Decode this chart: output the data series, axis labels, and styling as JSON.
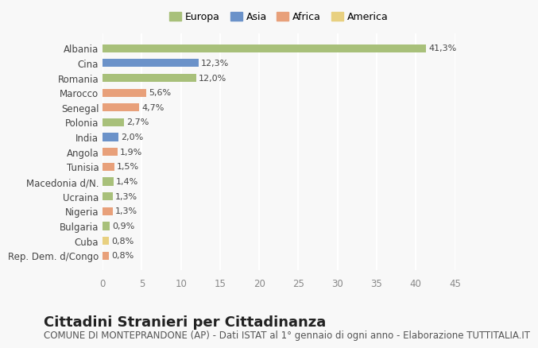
{
  "countries": [
    "Albania",
    "Cina",
    "Romania",
    "Marocco",
    "Senegal",
    "Polonia",
    "India",
    "Angola",
    "Tunisia",
    "Macedonia d/N.",
    "Ucraina",
    "Nigeria",
    "Bulgaria",
    "Cuba",
    "Rep. Dem. d/Congo"
  ],
  "values": [
    41.3,
    12.3,
    12.0,
    5.6,
    4.7,
    2.7,
    2.0,
    1.9,
    1.5,
    1.4,
    1.3,
    1.3,
    0.9,
    0.8,
    0.8
  ],
  "labels": [
    "41,3%",
    "12,3%",
    "12,0%",
    "5,6%",
    "4,7%",
    "2,7%",
    "2,0%",
    "1,9%",
    "1,5%",
    "1,4%",
    "1,3%",
    "1,3%",
    "0,9%",
    "0,8%",
    "0,8%"
  ],
  "continents": [
    "Europa",
    "Asia",
    "Europa",
    "Africa",
    "Africa",
    "Europa",
    "Asia",
    "Africa",
    "Africa",
    "Europa",
    "Europa",
    "Africa",
    "Europa",
    "America",
    "Africa"
  ],
  "continent_colors": {
    "Europa": "#a8c07a",
    "Asia": "#6b92c9",
    "Africa": "#e8a07a",
    "America": "#e8d080"
  },
  "legend_order": [
    "Europa",
    "Asia",
    "Africa",
    "America"
  ],
  "xlim": [
    0,
    45
  ],
  "xticks": [
    0,
    5,
    10,
    15,
    20,
    25,
    30,
    35,
    40,
    45
  ],
  "background_color": "#f8f8f8",
  "grid_color": "#ffffff",
  "title": "Cittadini Stranieri per Cittadinanza",
  "subtitle": "COMUNE DI MONTEPRANDONE (AP) - Dati ISTAT al 1° gennaio di ogni anno - Elaborazione TUTTITALIA.IT",
  "title_fontsize": 13,
  "subtitle_fontsize": 8.5,
  "bar_height": 0.55
}
